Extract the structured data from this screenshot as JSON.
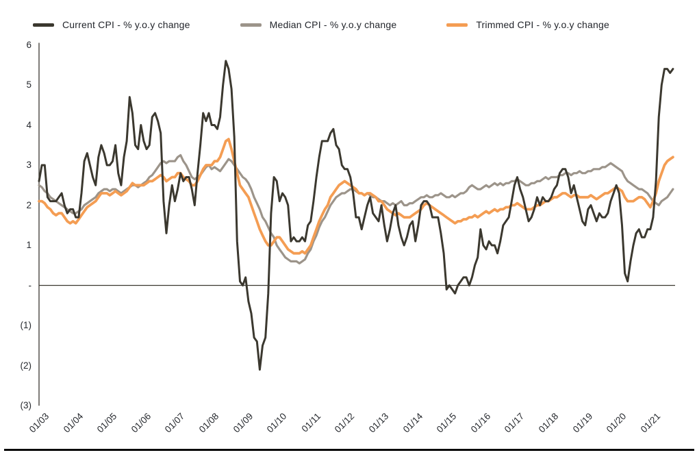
{
  "legend": {
    "items": [
      {
        "label": "Current CPI - % y.o.y change",
        "color": "#3B382F"
      },
      {
        "label": "Median CPI - % y.o.y change",
        "color": "#9C948A"
      },
      {
        "label": "Trimmed CPI - % y.o.y change",
        "color": "#F49D53"
      }
    ]
  },
  "y_axis": {
    "labels": [
      "6",
      "5",
      "4",
      "3",
      "2",
      "1",
      "-",
      "(1)",
      "(2)",
      "(3)"
    ],
    "values": [
      6,
      5,
      4,
      3,
      2,
      1,
      0,
      -1,
      -2,
      -3
    ]
  },
  "x_axis": {
    "labels": [
      "01/03",
      "01/04",
      "01/05",
      "01/06",
      "01/07",
      "01/08",
      "01/09",
      "01/10",
      "01/11",
      "01/12",
      "01/13",
      "01/14",
      "01/15",
      "01/16",
      "01/17",
      "01/18",
      "01/19",
      "01/20",
      "01/21"
    ]
  },
  "chart_data": {
    "type": "line",
    "x_start": "2003-01",
    "x_end": "2021-09",
    "x_frequency": "monthly",
    "x_tick_labels": [
      "01/03",
      "01/04",
      "01/05",
      "01/06",
      "01/07",
      "01/08",
      "01/09",
      "01/10",
      "01/11",
      "01/12",
      "01/13",
      "01/14",
      "01/15",
      "01/16",
      "01/17",
      "01/18",
      "01/19",
      "01/20",
      "01/21"
    ],
    "ylim": [
      -3,
      6
    ],
    "grid": false,
    "zero_line": true,
    "legend_position": "top",
    "series": [
      {
        "name": "Current CPI - % y.o.y change",
        "color": "#3B382F",
        "values": [
          2.6,
          3.0,
          3.0,
          2.2,
          2.1,
          2.1,
          2.1,
          2.2,
          2.3,
          2.0,
          1.8,
          1.9,
          1.9,
          1.7,
          1.7,
          2.3,
          3.1,
          3.3,
          3.0,
          2.7,
          2.5,
          3.2,
          3.5,
          3.3,
          3.0,
          3.0,
          3.1,
          3.5,
          2.8,
          2.5,
          3.2,
          3.6,
          4.7,
          4.3,
          3.5,
          3.4,
          4.0,
          3.6,
          3.4,
          3.5,
          4.2,
          4.3,
          4.1,
          3.8,
          2.1,
          1.3,
          2.0,
          2.5,
          2.1,
          2.4,
          2.8,
          2.6,
          2.7,
          2.7,
          2.4,
          2.0,
          2.8,
          3.5,
          4.3,
          4.1,
          4.3,
          4.0,
          4.0,
          3.9,
          4.2,
          5.0,
          5.6,
          5.4,
          4.9,
          3.7,
          1.1,
          0.1,
          0.0,
          0.2,
          -0.4,
          -0.7,
          -1.3,
          -1.4,
          -2.1,
          -1.5,
          -1.3,
          -0.2,
          1.8,
          2.7,
          2.6,
          2.1,
          2.3,
          2.2,
          2.0,
          1.1,
          1.2,
          1.1,
          1.1,
          1.2,
          1.1,
          1.5,
          1.6,
          2.1,
          2.7,
          3.2,
          3.6,
          3.6,
          3.6,
          3.8,
          3.9,
          3.5,
          3.4,
          3.0,
          2.9,
          2.9,
          2.7,
          2.3,
          1.7,
          1.7,
          1.4,
          1.7,
          2.0,
          2.2,
          1.8,
          1.7,
          1.6,
          2.0,
          1.5,
          1.1,
          1.4,
          1.8,
          2.0,
          1.5,
          1.2,
          1.0,
          1.2,
          1.5,
          1.6,
          1.1,
          1.5,
          2.0,
          2.1,
          2.1,
          2.0,
          1.7,
          1.7,
          1.7,
          1.3,
          0.8,
          -0.1,
          0.0,
          -0.1,
          -0.2,
          0.0,
          0.1,
          0.2,
          0.2,
          0.0,
          0.2,
          0.5,
          0.7,
          1.4,
          1.0,
          0.9,
          1.1,
          1.0,
          1.0,
          0.8,
          1.1,
          1.5,
          1.6,
          1.7,
          2.1,
          2.5,
          2.7,
          2.4,
          2.2,
          1.9,
          1.6,
          1.7,
          1.9,
          2.2,
          2.0,
          2.2,
          2.1,
          2.1,
          2.2,
          2.4,
          2.5,
          2.8,
          2.9,
          2.9,
          2.7,
          2.3,
          2.5,
          2.2,
          1.9,
          1.6,
          1.5,
          1.9,
          2.0,
          1.8,
          1.6,
          1.8,
          1.7,
          1.7,
          1.8,
          2.1,
          2.3,
          2.5,
          2.3,
          1.5,
          0.3,
          0.1,
          0.6,
          1.0,
          1.3,
          1.4,
          1.2,
          1.2,
          1.4,
          1.4,
          1.7,
          2.6,
          4.2,
          5.0,
          5.4,
          5.4,
          5.3,
          5.4
        ]
      },
      {
        "name": "Median CPI - % y.o.y change",
        "color": "#9C948A",
        "values": [
          2.5,
          2.45,
          2.35,
          2.3,
          2.2,
          2.15,
          2.1,
          2.05,
          2.0,
          1.95,
          1.9,
          1.85,
          1.8,
          1.8,
          1.85,
          1.9,
          2.0,
          2.05,
          2.1,
          2.15,
          2.2,
          2.3,
          2.35,
          2.4,
          2.4,
          2.35,
          2.4,
          2.4,
          2.35,
          2.3,
          2.35,
          2.4,
          2.45,
          2.5,
          2.5,
          2.45,
          2.5,
          2.55,
          2.6,
          2.7,
          2.75,
          2.85,
          2.95,
          3.05,
          3.1,
          3.05,
          3.1,
          3.1,
          3.1,
          3.2,
          3.25,
          3.1,
          3.0,
          2.85,
          2.7,
          2.65,
          2.7,
          2.75,
          2.85,
          2.95,
          3.0,
          2.9,
          2.95,
          2.9,
          2.85,
          2.95,
          3.05,
          3.15,
          3.1,
          3.0,
          2.9,
          2.8,
          2.7,
          2.65,
          2.55,
          2.4,
          2.2,
          2.05,
          1.9,
          1.7,
          1.6,
          1.45,
          1.3,
          1.2,
          1.0,
          0.9,
          0.8,
          0.7,
          0.65,
          0.6,
          0.6,
          0.6,
          0.55,
          0.6,
          0.65,
          0.8,
          0.9,
          1.1,
          1.25,
          1.45,
          1.6,
          1.7,
          1.85,
          2.0,
          2.1,
          2.2,
          2.25,
          2.3,
          2.3,
          2.35,
          2.4,
          2.4,
          2.35,
          2.3,
          2.3,
          2.25,
          2.3,
          2.25,
          2.2,
          2.2,
          2.15,
          2.1,
          2.1,
          2.05,
          2.0,
          2.05,
          2.0,
          2.05,
          2.1,
          2.0,
          2.0,
          2.05,
          2.05,
          2.1,
          2.15,
          2.2,
          2.2,
          2.25,
          2.2,
          2.2,
          2.25,
          2.25,
          2.3,
          2.25,
          2.2,
          2.2,
          2.25,
          2.2,
          2.25,
          2.3,
          2.3,
          2.35,
          2.45,
          2.5,
          2.45,
          2.4,
          2.4,
          2.45,
          2.5,
          2.45,
          2.5,
          2.55,
          2.5,
          2.55,
          2.5,
          2.55,
          2.55,
          2.6,
          2.6,
          2.65,
          2.6,
          2.55,
          2.5,
          2.5,
          2.55,
          2.55,
          2.6,
          2.6,
          2.65,
          2.7,
          2.65,
          2.7,
          2.7,
          2.7,
          2.75,
          2.75,
          2.8,
          2.8,
          2.75,
          2.8,
          2.8,
          2.85,
          2.8,
          2.8,
          2.85,
          2.85,
          2.9,
          2.9,
          2.9,
          2.95,
          2.95,
          3.0,
          3.05,
          3.0,
          2.95,
          2.9,
          2.85,
          2.7,
          2.6,
          2.55,
          2.5,
          2.45,
          2.4,
          2.4,
          2.35,
          2.3,
          2.2,
          2.1,
          2.05,
          2.0,
          2.1,
          2.15,
          2.2,
          2.3,
          2.4
        ]
      },
      {
        "name": "Trimmed CPI - % y.o.y change",
        "color": "#F49D53",
        "values": [
          2.1,
          2.1,
          2.05,
          1.95,
          1.9,
          1.8,
          1.75,
          1.8,
          1.8,
          1.7,
          1.6,
          1.55,
          1.6,
          1.55,
          1.65,
          1.75,
          1.85,
          1.95,
          2.0,
          2.05,
          2.1,
          2.2,
          2.3,
          2.3,
          2.3,
          2.25,
          2.3,
          2.35,
          2.3,
          2.25,
          2.3,
          2.35,
          2.45,
          2.55,
          2.5,
          2.5,
          2.5,
          2.5,
          2.55,
          2.6,
          2.6,
          2.65,
          2.7,
          2.75,
          2.7,
          2.6,
          2.65,
          2.7,
          2.7,
          2.8,
          2.8,
          2.7,
          2.65,
          2.6,
          2.5,
          2.5,
          2.6,
          2.75,
          2.9,
          3.0,
          3.0,
          3.0,
          3.1,
          3.1,
          3.2,
          3.4,
          3.6,
          3.65,
          3.4,
          3.1,
          2.8,
          2.5,
          2.4,
          2.3,
          2.2,
          2.0,
          1.8,
          1.6,
          1.4,
          1.25,
          1.1,
          1.0,
          1.0,
          1.1,
          1.2,
          1.2,
          1.1,
          1.0,
          0.9,
          0.85,
          0.8,
          0.8,
          0.8,
          0.85,
          0.8,
          0.9,
          1.0,
          1.2,
          1.4,
          1.6,
          1.75,
          1.9,
          2.0,
          2.2,
          2.3,
          2.4,
          2.5,
          2.55,
          2.6,
          2.55,
          2.5,
          2.45,
          2.4,
          2.3,
          2.3,
          2.25,
          2.3,
          2.3,
          2.25,
          2.2,
          2.1,
          2.1,
          2.0,
          1.9,
          1.85,
          1.8,
          1.75,
          1.8,
          1.75,
          1.7,
          1.7,
          1.7,
          1.75,
          1.8,
          1.85,
          1.9,
          2.0,
          2.05,
          2.0,
          1.95,
          1.9,
          1.85,
          1.8,
          1.75,
          1.7,
          1.65,
          1.6,
          1.55,
          1.6,
          1.6,
          1.65,
          1.65,
          1.7,
          1.7,
          1.75,
          1.7,
          1.75,
          1.8,
          1.85,
          1.8,
          1.85,
          1.9,
          1.85,
          1.9,
          1.9,
          1.95,
          1.95,
          2.0,
          2.0,
          2.05,
          2.0,
          1.95,
          1.9,
          1.9,
          1.9,
          1.95,
          2.0,
          2.0,
          2.05,
          2.1,
          2.1,
          2.15,
          2.2,
          2.2,
          2.25,
          2.3,
          2.3,
          2.25,
          2.2,
          2.25,
          2.25,
          2.2,
          2.2,
          2.2,
          2.2,
          2.25,
          2.2,
          2.15,
          2.2,
          2.25,
          2.3,
          2.3,
          2.35,
          2.4,
          2.45,
          2.4,
          2.35,
          2.2,
          2.1,
          2.1,
          2.1,
          2.15,
          2.2,
          2.2,
          2.15,
          2.05,
          1.95,
          2.1,
          2.3,
          2.6,
          2.8,
          3.0,
          3.1,
          3.15,
          3.2
        ]
      }
    ]
  }
}
